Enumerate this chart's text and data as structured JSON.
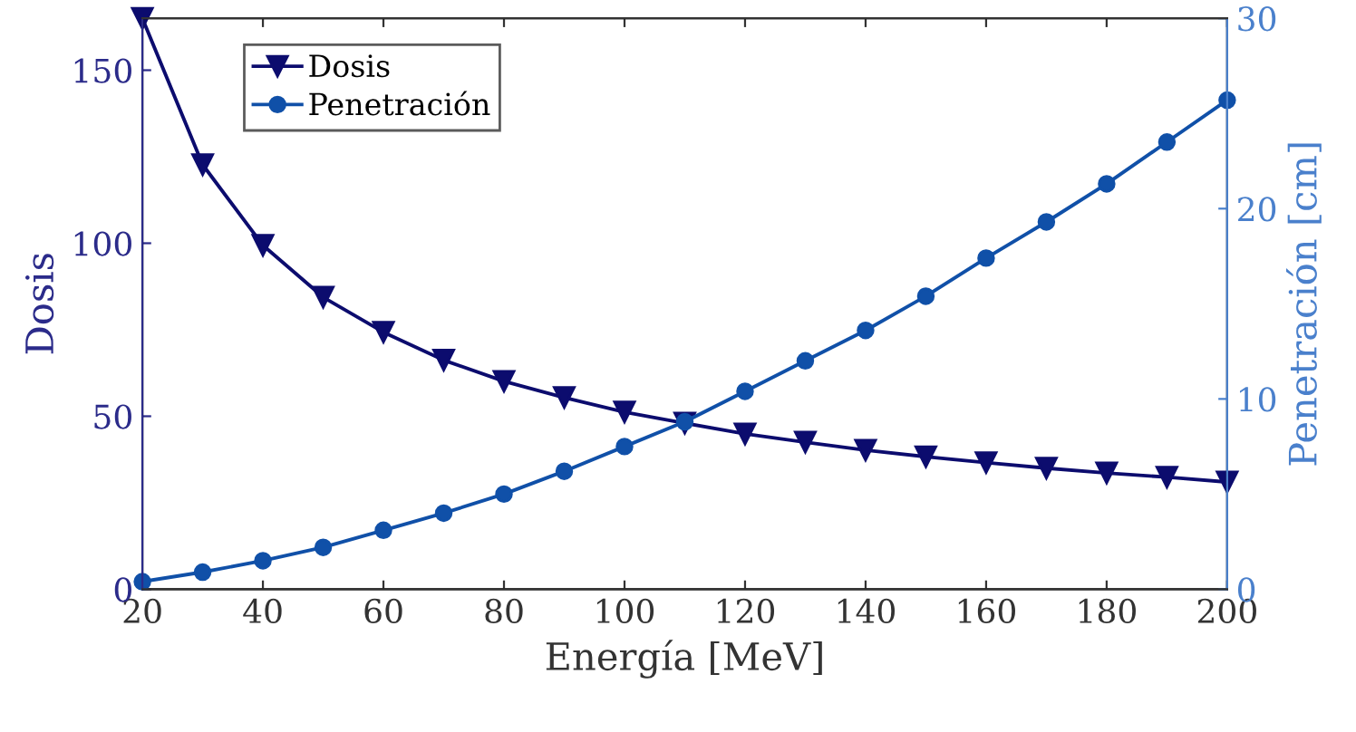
{
  "chart_data": {
    "type": "line",
    "xlabel": "Energía [MeV]",
    "ylabel": "Dosis",
    "y2label": "Penetración [cm]",
    "x": [
      20,
      30,
      40,
      50,
      60,
      70,
      80,
      90,
      100,
      110,
      120,
      130,
      140,
      150,
      160,
      170,
      180,
      190,
      200
    ],
    "xlim": [
      20,
      200
    ],
    "xticks": [
      20,
      40,
      60,
      80,
      100,
      120,
      140,
      160,
      180,
      200
    ],
    "ylim": [
      0,
      165
    ],
    "yticks": [
      0,
      50,
      100,
      150
    ],
    "y2lim": [
      0,
      30
    ],
    "y2ticks": [
      0,
      10,
      20,
      30
    ],
    "grid": false,
    "legend": "top left",
    "series": [
      {
        "name": "Dosis",
        "color": "#0c0c6e",
        "marker": "triangle",
        "values": [
          165,
          122.7,
          99.4,
          84.4,
          74.3,
          66.2,
          60.1,
          55.4,
          51.2,
          48.0,
          44.9,
          42.5,
          40.2,
          38.3,
          36.6,
          35.0,
          33.6,
          32.4,
          31.0
        ]
      },
      {
        "name": "Penetración",
        "color": "#1050a8",
        "marker": "circle",
        "axis": "y2",
        "values": [
          0.4,
          0.9,
          1.5,
          2.2,
          3.1,
          4.0,
          5.0,
          6.2,
          7.5,
          8.8,
          10.4,
          12.0,
          13.6,
          15.4,
          17.4,
          19.3,
          21.3,
          23.5,
          25.7
        ]
      }
    ]
  }
}
